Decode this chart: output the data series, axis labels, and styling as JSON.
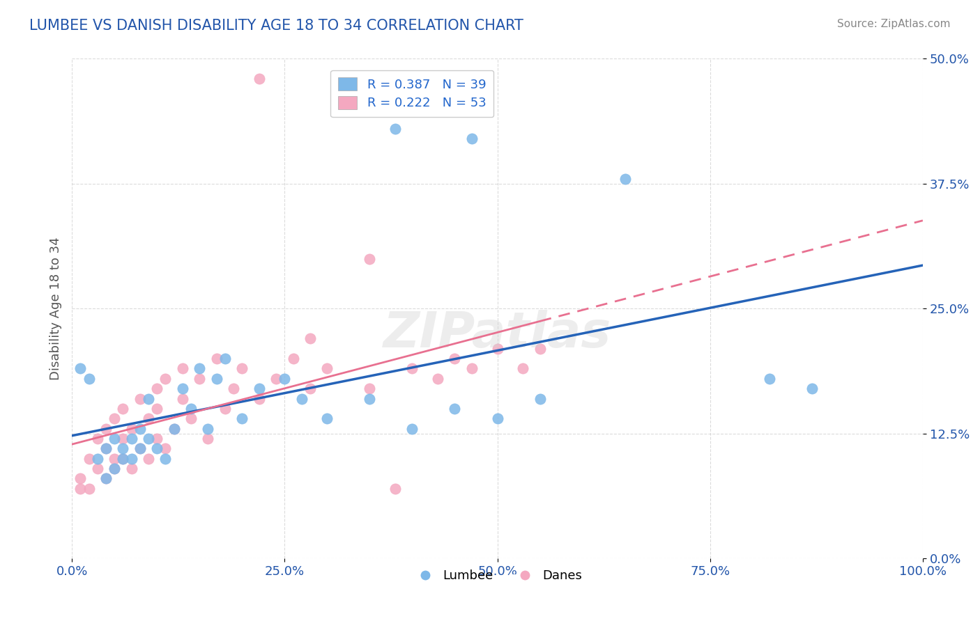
{
  "title": "LUMBEE VS DANISH DISABILITY AGE 18 TO 34 CORRELATION CHART",
  "source": "Source: ZipAtlas.com",
  "xlabel": "",
  "ylabel": "Disability Age 18 to 34",
  "xlim": [
    0.0,
    1.0
  ],
  "ylim": [
    0.0,
    0.5
  ],
  "yticks": [
    0.0,
    0.125,
    0.25,
    0.375,
    0.5
  ],
  "ytick_labels": [
    "0.0%",
    "12.5%",
    "25.0%",
    "37.5%",
    "50.0%"
  ],
  "xticks": [
    0.0,
    0.25,
    0.5,
    0.75,
    1.0
  ],
  "xtick_labels": [
    "0.0%",
    "25.0%",
    "50.0%",
    "75.0%",
    "100.0%"
  ],
  "lumbee_color": "#7eb8e8",
  "danes_color": "#f4a8c0",
  "lumbee_line_color": "#2563b8",
  "danes_line_color": "#e87090",
  "lumbee_R": 0.387,
  "lumbee_N": 39,
  "danes_R": 0.222,
  "danes_N": 53,
  "watermark": "ZIPatlas",
  "background_color": "#ffffff",
  "grid_color": "#cccccc",
  "title_color": "#2255aa",
  "axis_label_color": "#555555",
  "tick_color": "#2255aa",
  "legend_r_color": "#2266cc",
  "lumbee_x": [
    0.01,
    0.02,
    0.03,
    0.04,
    0.04,
    0.05,
    0.05,
    0.06,
    0.06,
    0.07,
    0.07,
    0.08,
    0.08,
    0.09,
    0.09,
    0.1,
    0.11,
    0.12,
    0.13,
    0.14,
    0.15,
    0.16,
    0.17,
    0.18,
    0.2,
    0.22,
    0.25,
    0.27,
    0.3,
    0.35,
    0.4,
    0.45,
    0.5,
    0.55,
    0.65,
    0.82,
    0.87,
    0.38,
    0.47
  ],
  "lumbee_y": [
    0.19,
    0.18,
    0.1,
    0.08,
    0.11,
    0.09,
    0.12,
    0.1,
    0.11,
    0.1,
    0.12,
    0.11,
    0.13,
    0.12,
    0.16,
    0.11,
    0.1,
    0.13,
    0.17,
    0.15,
    0.19,
    0.13,
    0.18,
    0.2,
    0.14,
    0.17,
    0.18,
    0.16,
    0.14,
    0.16,
    0.13,
    0.15,
    0.14,
    0.16,
    0.38,
    0.18,
    0.17,
    0.43,
    0.42
  ],
  "danes_x": [
    0.01,
    0.01,
    0.02,
    0.02,
    0.03,
    0.03,
    0.04,
    0.04,
    0.04,
    0.05,
    0.05,
    0.05,
    0.06,
    0.06,
    0.06,
    0.07,
    0.07,
    0.08,
    0.08,
    0.09,
    0.09,
    0.1,
    0.1,
    0.1,
    0.11,
    0.11,
    0.12,
    0.13,
    0.13,
    0.14,
    0.15,
    0.16,
    0.17,
    0.18,
    0.19,
    0.2,
    0.22,
    0.24,
    0.26,
    0.28,
    0.3,
    0.35,
    0.4,
    0.43,
    0.45,
    0.47,
    0.5,
    0.53,
    0.55,
    0.28,
    0.22,
    0.35,
    0.38
  ],
  "danes_y": [
    0.08,
    0.07,
    0.07,
    0.1,
    0.09,
    0.12,
    0.08,
    0.11,
    0.13,
    0.09,
    0.1,
    0.14,
    0.1,
    0.12,
    0.15,
    0.09,
    0.13,
    0.11,
    0.16,
    0.1,
    0.14,
    0.12,
    0.17,
    0.15,
    0.11,
    0.18,
    0.13,
    0.16,
    0.19,
    0.14,
    0.18,
    0.12,
    0.2,
    0.15,
    0.17,
    0.19,
    0.16,
    0.18,
    0.2,
    0.17,
    0.19,
    0.17,
    0.19,
    0.18,
    0.2,
    0.19,
    0.21,
    0.19,
    0.21,
    0.22,
    0.48,
    0.3,
    0.07
  ]
}
